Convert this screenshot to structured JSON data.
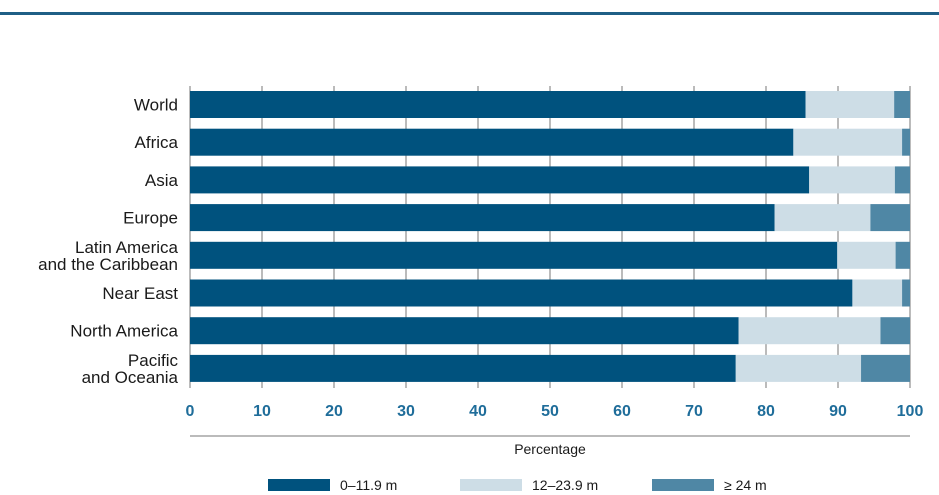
{
  "chart_data": {
    "type": "bar",
    "orientation": "horizontal",
    "stacked": true,
    "categories": [
      "World",
      "Africa",
      "Asia",
      "Europe",
      "Latin America\nand the Caribbean",
      "Near East",
      "North America",
      "Pacific\nand Oceania"
    ],
    "series": [
      {
        "name": "0–11.9 m",
        "color": "#00527e",
        "values": [
          85.5,
          83.8,
          86.0,
          81.2,
          89.9,
          92.0,
          76.2,
          75.8
        ]
      },
      {
        "name": "12–23.9 m",
        "color": "#cddde6",
        "values": [
          12.3,
          15.1,
          11.9,
          13.3,
          8.1,
          6.9,
          19.7,
          17.4
        ]
      },
      {
        "name": "≥ 24 m",
        "color": "#4f87a5",
        "values": [
          2.2,
          1.1,
          2.1,
          5.5,
          2.0,
          1.1,
          4.1,
          6.8
        ]
      }
    ],
    "xlabel": "Percentage",
    "xlim": [
      0,
      100
    ],
    "xticks": [
      0,
      10,
      20,
      30,
      40,
      50,
      60,
      70,
      80,
      90,
      100
    ],
    "grid": true,
    "legend_position": "bottom"
  }
}
